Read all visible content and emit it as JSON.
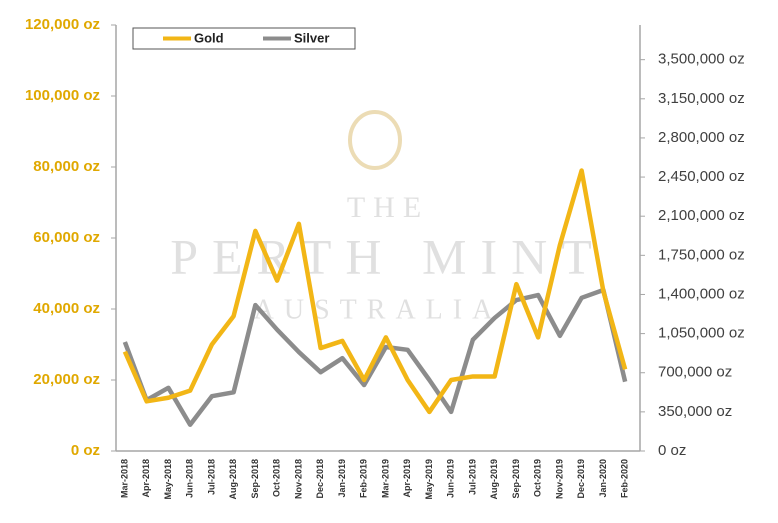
{
  "chart_data": {
    "type": "line",
    "watermark": [
      "THE",
      "PERTH MINT",
      "AUSTRALIA"
    ],
    "categories": [
      "Mar-2018",
      "Apr-2018",
      "May-2018",
      "Jun-2018",
      "Jul-2018",
      "Aug-2018",
      "Sep-2018",
      "Oct-2018",
      "Nov-2018",
      "Dec-2018",
      "Jan-2019",
      "Feb-2019",
      "Mar-2019",
      "Apr-2019",
      "May-2019",
      "Jun-2019",
      "Jul-2019",
      "Aug-2019",
      "Sep-2019",
      "Oct-2019",
      "Nov-2019",
      "Dec-2019",
      "Jan-2020",
      "Feb-2020"
    ],
    "series": [
      {
        "name": "Gold",
        "color": "#f2b616",
        "values": [
          28000,
          14000,
          15000,
          17000,
          30000,
          38000,
          62000,
          48000,
          64000,
          29000,
          31000,
          20000,
          32000,
          20000,
          11000,
          20000,
          21000,
          21000,
          47000,
          32000,
          58000,
          79000,
          45000,
          23000
        ]
      },
      {
        "name": "Silver",
        "color": "#8c8c8c",
        "axis": "y2",
        "values": [
          975000,
          455000,
          565000,
          235000,
          490000,
          525000,
          1305000,
          1085000,
          885000,
          705000,
          830000,
          590000,
          930000,
          905000,
          635000,
          350000,
          995000,
          1190000,
          1350000,
          1395000,
          1030000,
          1370000,
          1440000,
          620000
        ]
      }
    ],
    "ylim": [
      0,
      120000
    ],
    "yticks": [
      {
        "value": 0,
        "label": "0 oz"
      },
      {
        "value": 20000,
        "label": "20,000 oz"
      },
      {
        "value": 40000,
        "label": "40,000 oz"
      },
      {
        "value": 60000,
        "label": "60,000 oz"
      },
      {
        "value": 80000,
        "label": "80,000 oz"
      },
      {
        "value": 100000,
        "label": "100,000 oz"
      },
      {
        "value": 120000,
        "label": "120,000 oz"
      }
    ],
    "y2lim": [
      0,
      3810000
    ],
    "y2ticks": [
      {
        "value": 0,
        "label": "0 oz"
      },
      {
        "value": 350000,
        "label": "350,000 oz"
      },
      {
        "value": 700000,
        "label": "700,000 oz"
      },
      {
        "value": 1050000,
        "label": "1,050,000 oz"
      },
      {
        "value": 1400000,
        "label": "1,400,000 oz"
      },
      {
        "value": 1750000,
        "label": "1,750,000 oz"
      },
      {
        "value": 2100000,
        "label": "2,100,000 oz"
      },
      {
        "value": 2450000,
        "label": "2,450,000 oz"
      },
      {
        "value": 2800000,
        "label": "2,800,000 oz"
      },
      {
        "value": 3150000,
        "label": "3,150,000 oz"
      },
      {
        "value": 3500000,
        "label": "3,500,000 oz"
      }
    ],
    "legend": "top-left"
  }
}
